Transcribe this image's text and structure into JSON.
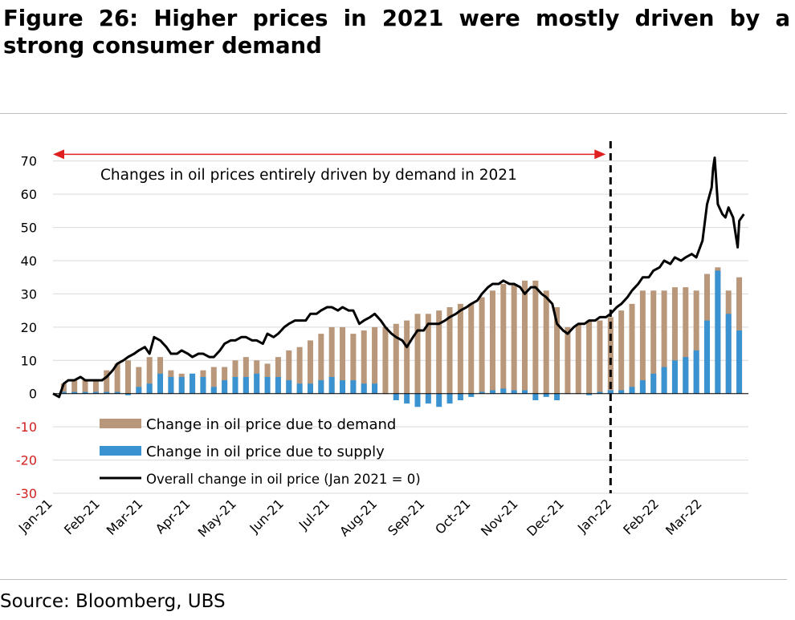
{
  "figure": {
    "title": "Figure 26: Higher prices in 2021 were mostly driven by a strong consumer demand",
    "source": "Source: Bloomberg, UBS"
  },
  "colors": {
    "demand": "#b8977a",
    "supply": "#3a93d0",
    "overall": "#000000",
    "annotation_arrow": "#e02020",
    "negative_tick": "#d02020",
    "grid": "#d9d9d9"
  },
  "chart_data": {
    "type": "bar",
    "stacked": true,
    "ylim": [
      -30,
      75
    ],
    "yticks": [
      -30,
      -20,
      -10,
      0,
      10,
      20,
      30,
      40,
      50,
      60,
      70
    ],
    "grid": true,
    "legend_position": "bottom-left",
    "x_start": "2021-01-01",
    "x_end": "2022-03-31",
    "x_tick_labels": [
      "Jan-21",
      "Feb-21",
      "Mar-21",
      "Apr-21",
      "May-21",
      "Jun-21",
      "Jul-21",
      "Aug-21",
      "Sep-21",
      "Oct-21",
      "Nov-21",
      "Dec-21",
      "Jan-22",
      "Feb-22",
      "Mar-22"
    ],
    "x_tick_dates": [
      "2021-01-01",
      "2021-02-01",
      "2021-03-01",
      "2021-04-01",
      "2021-05-01",
      "2021-06-01",
      "2021-07-01",
      "2021-08-01",
      "2021-09-01",
      "2021-10-01",
      "2021-11-01",
      "2021-12-01",
      "2022-01-01",
      "2022-02-01",
      "2022-03-01"
    ],
    "series": [
      {
        "name": "Change in oil price due to demand",
        "kind": "bar",
        "points": [
          [
            "2021-01-08",
            3
          ],
          [
            "2021-01-15",
            4
          ],
          [
            "2021-01-22",
            4
          ],
          [
            "2021-01-29",
            4
          ],
          [
            "2021-02-05",
            7
          ],
          [
            "2021-02-12",
            9
          ],
          [
            "2021-02-19",
            10
          ],
          [
            "2021-02-26",
            8
          ],
          [
            "2021-03-05",
            11
          ],
          [
            "2021-03-12",
            11
          ],
          [
            "2021-03-19",
            7
          ],
          [
            "2021-03-26",
            6
          ],
          [
            "2021-04-02",
            6
          ],
          [
            "2021-04-09",
            7
          ],
          [
            "2021-04-16",
            8
          ],
          [
            "2021-04-23",
            8
          ],
          [
            "2021-04-30",
            10
          ],
          [
            "2021-05-07",
            11
          ],
          [
            "2021-05-14",
            10
          ],
          [
            "2021-05-21",
            9
          ],
          [
            "2021-05-28",
            11
          ],
          [
            "2021-06-04",
            13
          ],
          [
            "2021-06-11",
            14
          ],
          [
            "2021-06-18",
            16
          ],
          [
            "2021-06-25",
            18
          ],
          [
            "2021-07-02",
            20
          ],
          [
            "2021-07-09",
            20
          ],
          [
            "2021-07-16",
            18
          ],
          [
            "2021-07-23",
            19
          ],
          [
            "2021-07-30",
            20
          ],
          [
            "2021-08-06",
            20
          ],
          [
            "2021-08-13",
            21
          ],
          [
            "2021-08-20",
            22
          ],
          [
            "2021-08-27",
            24
          ],
          [
            "2021-09-03",
            24
          ],
          [
            "2021-09-10",
            25
          ],
          [
            "2021-09-17",
            26
          ],
          [
            "2021-09-24",
            27
          ],
          [
            "2021-10-01",
            27
          ],
          [
            "2021-10-08",
            29
          ],
          [
            "2021-10-15",
            31
          ],
          [
            "2021-10-22",
            33
          ],
          [
            "2021-10-29",
            33
          ],
          [
            "2021-11-05",
            34
          ],
          [
            "2021-11-12",
            34
          ],
          [
            "2021-11-19",
            31
          ],
          [
            "2021-11-26",
            26
          ],
          [
            "2021-12-03",
            20
          ],
          [
            "2021-12-10",
            21
          ],
          [
            "2021-12-17",
            22
          ],
          [
            "2021-12-24",
            22
          ],
          [
            "2021-12-31",
            23
          ],
          [
            "2022-01-07",
            25
          ],
          [
            "2022-01-14",
            27
          ],
          [
            "2022-01-21",
            31
          ],
          [
            "2022-01-28",
            31
          ],
          [
            "2022-02-04",
            31
          ],
          [
            "2022-02-11",
            32
          ],
          [
            "2022-02-18",
            32
          ],
          [
            "2022-02-25",
            31
          ],
          [
            "2022-03-04",
            36
          ],
          [
            "2022-03-11",
            38
          ],
          [
            "2022-03-18",
            31
          ],
          [
            "2022-03-25",
            35
          ]
        ]
      },
      {
        "name": "Change in oil price due to supply",
        "kind": "bar",
        "points": [
          [
            "2021-01-08",
            0.5
          ],
          [
            "2021-01-15",
            0.5
          ],
          [
            "2021-01-22",
            0.5
          ],
          [
            "2021-01-29",
            0.5
          ],
          [
            "2021-02-05",
            0.5
          ],
          [
            "2021-02-12",
            0.5
          ],
          [
            "2021-02-19",
            -0.5
          ],
          [
            "2021-02-26",
            2
          ],
          [
            "2021-03-05",
            3
          ],
          [
            "2021-03-12",
            6
          ],
          [
            "2021-03-19",
            5
          ],
          [
            "2021-03-26",
            5
          ],
          [
            "2021-04-02",
            6
          ],
          [
            "2021-04-09",
            5
          ],
          [
            "2021-04-16",
            2
          ],
          [
            "2021-04-23",
            4
          ],
          [
            "2021-04-30",
            5
          ],
          [
            "2021-05-07",
            5
          ],
          [
            "2021-05-14",
            6
          ],
          [
            "2021-05-21",
            5
          ],
          [
            "2021-05-28",
            5
          ],
          [
            "2021-06-04",
            4
          ],
          [
            "2021-06-11",
            3
          ],
          [
            "2021-06-18",
            3
          ],
          [
            "2021-06-25",
            4
          ],
          [
            "2021-07-02",
            5
          ],
          [
            "2021-07-09",
            4
          ],
          [
            "2021-07-16",
            4
          ],
          [
            "2021-07-23",
            3
          ],
          [
            "2021-07-30",
            3
          ],
          [
            "2021-08-06",
            0
          ],
          [
            "2021-08-13",
            -2
          ],
          [
            "2021-08-20",
            -3
          ],
          [
            "2021-08-27",
            -4
          ],
          [
            "2021-09-03",
            -3
          ],
          [
            "2021-09-10",
            -4
          ],
          [
            "2021-09-17",
            -3
          ],
          [
            "2021-09-24",
            -2
          ],
          [
            "2021-10-01",
            -1
          ],
          [
            "2021-10-08",
            0.5
          ],
          [
            "2021-10-15",
            1
          ],
          [
            "2021-10-22",
            1.5
          ],
          [
            "2021-10-29",
            1
          ],
          [
            "2021-11-05",
            1
          ],
          [
            "2021-11-12",
            -2
          ],
          [
            "2021-11-19",
            -1
          ],
          [
            "2021-11-26",
            -2
          ],
          [
            "2021-12-03",
            0
          ],
          [
            "2021-12-10",
            0
          ],
          [
            "2021-12-17",
            -0.5
          ],
          [
            "2021-12-24",
            0.5
          ],
          [
            "2021-12-31",
            1
          ],
          [
            "2022-01-07",
            1
          ],
          [
            "2022-01-14",
            2
          ],
          [
            "2022-01-21",
            4
          ],
          [
            "2022-01-28",
            6
          ],
          [
            "2022-02-04",
            8
          ],
          [
            "2022-02-11",
            10
          ],
          [
            "2022-02-18",
            11
          ],
          [
            "2022-02-25",
            13
          ],
          [
            "2022-03-04",
            22
          ],
          [
            "2022-03-11",
            37
          ],
          [
            "2022-03-18",
            24
          ],
          [
            "2022-03-25",
            19
          ]
        ]
      },
      {
        "name": "Overall change in oil price (Jan 2021 = 0)",
        "kind": "line",
        "points": [
          [
            "2021-01-01",
            0
          ],
          [
            "2021-01-05",
            -1
          ],
          [
            "2021-01-08",
            3
          ],
          [
            "2021-01-11",
            4
          ],
          [
            "2021-01-15",
            4
          ],
          [
            "2021-01-19",
            5
          ],
          [
            "2021-01-22",
            4
          ],
          [
            "2021-01-26",
            4
          ],
          [
            "2021-01-29",
            4
          ],
          [
            "2021-02-02",
            4
          ],
          [
            "2021-02-05",
            5
          ],
          [
            "2021-02-09",
            7
          ],
          [
            "2021-02-12",
            9
          ],
          [
            "2021-02-16",
            10
          ],
          [
            "2021-02-19",
            11
          ],
          [
            "2021-02-23",
            12
          ],
          [
            "2021-02-26",
            13
          ],
          [
            "2021-03-02",
            14
          ],
          [
            "2021-03-05",
            12
          ],
          [
            "2021-03-08",
            17
          ],
          [
            "2021-03-12",
            16
          ],
          [
            "2021-03-16",
            14
          ],
          [
            "2021-03-19",
            12
          ],
          [
            "2021-03-23",
            12
          ],
          [
            "2021-03-26",
            13
          ],
          [
            "2021-03-30",
            12
          ],
          [
            "2021-04-02",
            11
          ],
          [
            "2021-04-06",
            12
          ],
          [
            "2021-04-09",
            12
          ],
          [
            "2021-04-13",
            11
          ],
          [
            "2021-04-16",
            11
          ],
          [
            "2021-04-20",
            13
          ],
          [
            "2021-04-23",
            15
          ],
          [
            "2021-04-27",
            16
          ],
          [
            "2021-04-30",
            16
          ],
          [
            "2021-05-04",
            17
          ],
          [
            "2021-05-07",
            17
          ],
          [
            "2021-05-11",
            16
          ],
          [
            "2021-05-14",
            16
          ],
          [
            "2021-05-18",
            15
          ],
          [
            "2021-05-21",
            18
          ],
          [
            "2021-05-25",
            17
          ],
          [
            "2021-05-28",
            18
          ],
          [
            "2021-06-01",
            20
          ],
          [
            "2021-06-04",
            21
          ],
          [
            "2021-06-08",
            22
          ],
          [
            "2021-06-11",
            22
          ],
          [
            "2021-06-15",
            22
          ],
          [
            "2021-06-18",
            24
          ],
          [
            "2021-06-22",
            24
          ],
          [
            "2021-06-25",
            25
          ],
          [
            "2021-06-29",
            26
          ],
          [
            "2021-07-02",
            26
          ],
          [
            "2021-07-06",
            25
          ],
          [
            "2021-07-09",
            26
          ],
          [
            "2021-07-13",
            25
          ],
          [
            "2021-07-16",
            25
          ],
          [
            "2021-07-20",
            21
          ],
          [
            "2021-07-23",
            22
          ],
          [
            "2021-07-27",
            23
          ],
          [
            "2021-07-30",
            24
          ],
          [
            "2021-08-03",
            22
          ],
          [
            "2021-08-06",
            20
          ],
          [
            "2021-08-10",
            18
          ],
          [
            "2021-08-13",
            17
          ],
          [
            "2021-08-17",
            16
          ],
          [
            "2021-08-20",
            14
          ],
          [
            "2021-08-24",
            17
          ],
          [
            "2021-08-27",
            19
          ],
          [
            "2021-08-31",
            19
          ],
          [
            "2021-09-03",
            21
          ],
          [
            "2021-09-07",
            21
          ],
          [
            "2021-09-10",
            21
          ],
          [
            "2021-09-14",
            22
          ],
          [
            "2021-09-17",
            23
          ],
          [
            "2021-09-21",
            24
          ],
          [
            "2021-09-24",
            25
          ],
          [
            "2021-09-28",
            26
          ],
          [
            "2021-10-01",
            27
          ],
          [
            "2021-10-05",
            28
          ],
          [
            "2021-10-08",
            30
          ],
          [
            "2021-10-12",
            32
          ],
          [
            "2021-10-15",
            33
          ],
          [
            "2021-10-19",
            33
          ],
          [
            "2021-10-22",
            34
          ],
          [
            "2021-10-26",
            33
          ],
          [
            "2021-10-29",
            33
          ],
          [
            "2021-11-02",
            32
          ],
          [
            "2021-11-05",
            30
          ],
          [
            "2021-11-09",
            32
          ],
          [
            "2021-11-12",
            32
          ],
          [
            "2021-11-16",
            30
          ],
          [
            "2021-11-19",
            29
          ],
          [
            "2021-11-23",
            27
          ],
          [
            "2021-11-26",
            21
          ],
          [
            "2021-11-30",
            19
          ],
          [
            "2021-12-03",
            18
          ],
          [
            "2021-12-07",
            20
          ],
          [
            "2021-12-10",
            21
          ],
          [
            "2021-12-14",
            21
          ],
          [
            "2021-12-17",
            22
          ],
          [
            "2021-12-21",
            22
          ],
          [
            "2021-12-24",
            23
          ],
          [
            "2021-12-28",
            23
          ],
          [
            "2021-12-31",
            24
          ],
          [
            "2022-01-04",
            26
          ],
          [
            "2022-01-07",
            27
          ],
          [
            "2022-01-11",
            29
          ],
          [
            "2022-01-14",
            31
          ],
          [
            "2022-01-18",
            33
          ],
          [
            "2022-01-21",
            35
          ],
          [
            "2022-01-25",
            35
          ],
          [
            "2022-01-28",
            37
          ],
          [
            "2022-02-01",
            38
          ],
          [
            "2022-02-04",
            40
          ],
          [
            "2022-02-08",
            39
          ],
          [
            "2022-02-11",
            41
          ],
          [
            "2022-02-15",
            40
          ],
          [
            "2022-02-18",
            41
          ],
          [
            "2022-02-22",
            42
          ],
          [
            "2022-02-25",
            41
          ],
          [
            "2022-03-01",
            46
          ],
          [
            "2022-03-04",
            57
          ],
          [
            "2022-03-07",
            62
          ],
          [
            "2022-03-08",
            68
          ],
          [
            "2022-03-09",
            71
          ],
          [
            "2022-03-11",
            57
          ],
          [
            "2022-03-14",
            54
          ],
          [
            "2022-03-16",
            53
          ],
          [
            "2022-03-18",
            56
          ],
          [
            "2022-03-21",
            53
          ],
          [
            "2022-03-23",
            47
          ],
          [
            "2022-03-24",
            44
          ],
          [
            "2022-03-25",
            52
          ],
          [
            "2022-03-28",
            54
          ]
        ]
      }
    ],
    "vertical_marker_date": "2021-12-31",
    "annotation": {
      "text": "Changes in oil prices entirely driven by demand in 2021",
      "from_date": "2021-01-01",
      "to_date": "2021-12-31",
      "y": 72
    }
  }
}
